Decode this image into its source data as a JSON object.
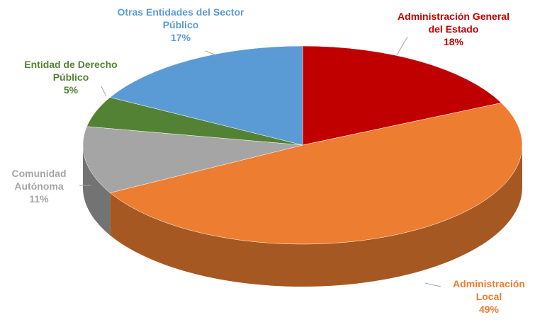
{
  "chart_data": {
    "type": "pie3d",
    "categories": [
      "Administración General del Estado",
      "Administración Local",
      "Comunidad Autónoma",
      "Entidad de Derecho Público",
      "Otras Entidades del Sector Público"
    ],
    "values": [
      18,
      49,
      11,
      5,
      17
    ],
    "value_labels": [
      "18%",
      "49%",
      "11%",
      "5%",
      "17%"
    ],
    "colors": [
      "#c00000",
      "#ed7d31",
      "#a5a5a5",
      "#548235",
      "#5b9bd5"
    ]
  }
}
